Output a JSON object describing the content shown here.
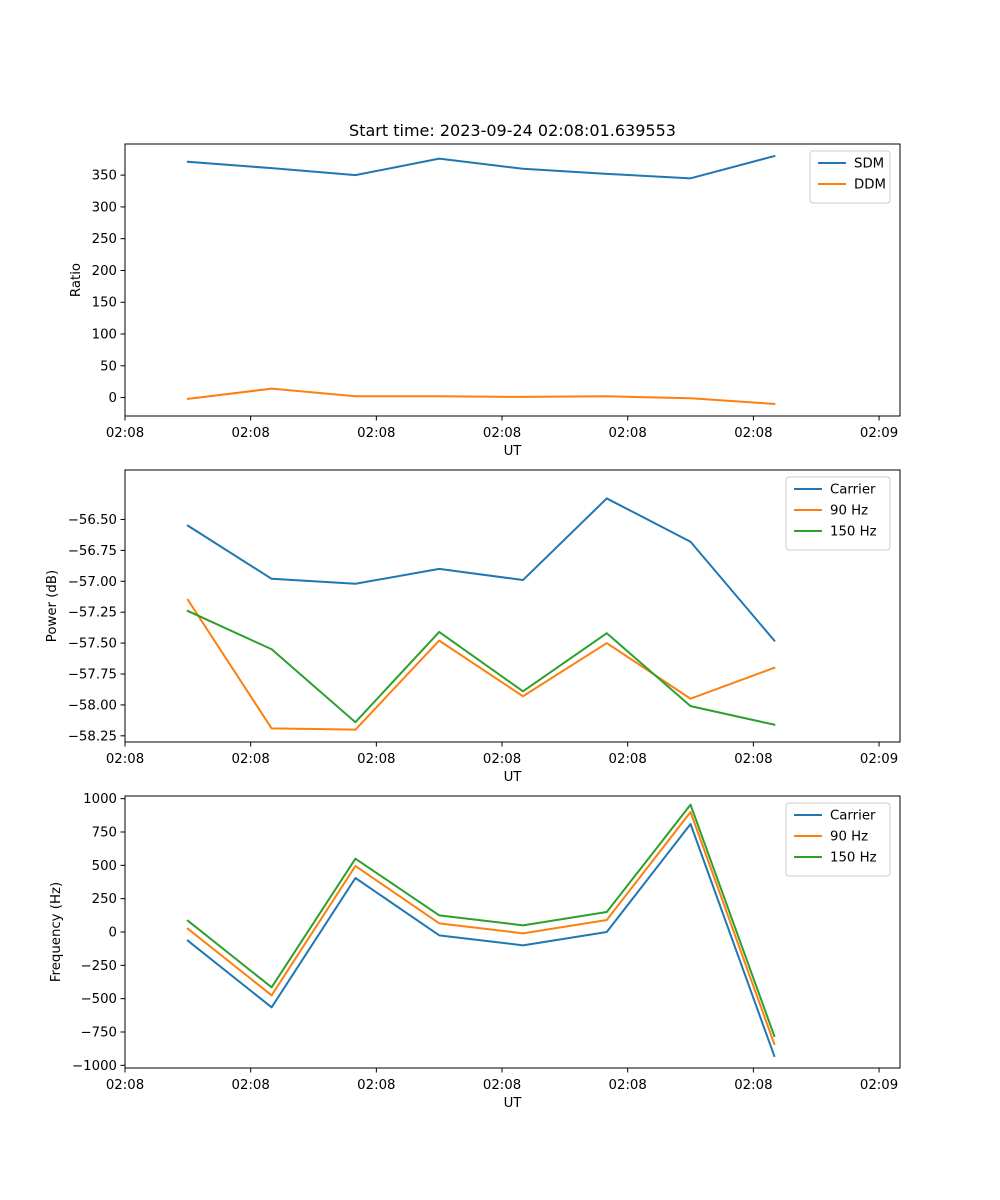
{
  "figure_title": "Start time: 2023-09-24 02:08:01.639553",
  "colors": {
    "blue": "#1f77b4",
    "orange": "#ff7f0e",
    "green": "#2ca02c"
  },
  "chart_data": [
    {
      "type": "line",
      "title": "Start time: 2023-09-24 02:08:01.639553",
      "xlabel": "UT",
      "ylabel": "Ratio",
      "xlim": [
        0,
        9.25
      ],
      "ylim": [
        -29,
        399
      ],
      "x": [
        0.75,
        1.75,
        2.75,
        3.75,
        4.75,
        5.75,
        6.75,
        7.75
      ],
      "xticks": [
        0,
        1.5,
        3,
        4.5,
        6,
        7.5,
        9
      ],
      "xticklabels": [
        "02:08",
        "02:08",
        "02:08",
        "02:08",
        "02:08",
        "02:08",
        "02:09"
      ],
      "yticks": [
        0,
        50,
        100,
        150,
        200,
        250,
        300,
        350
      ],
      "yticklabels": [
        "0",
        "50",
        "100",
        "150",
        "200",
        "250",
        "300",
        "350"
      ],
      "legend": "top-right",
      "series": [
        {
          "name": "SDM",
          "color": "#1f77b4",
          "values": [
            371,
            361,
            350,
            376,
            360,
            352,
            345,
            380
          ]
        },
        {
          "name": "DDM",
          "color": "#ff7f0e",
          "values": [
            -2,
            14,
            2,
            2,
            1,
            2,
            -1,
            -10
          ]
        }
      ]
    },
    {
      "type": "line",
      "title": "",
      "xlabel": "UT",
      "ylabel": "Power (dB)",
      "xlim": [
        0,
        9.25
      ],
      "ylim": [
        -58.3,
        -56.1
      ],
      "x": [
        0.75,
        1.75,
        2.75,
        3.75,
        4.75,
        5.75,
        6.75,
        7.75
      ],
      "xticks": [
        0,
        1.5,
        3,
        4.5,
        6,
        7.5,
        9
      ],
      "xticklabels": [
        "02:08",
        "02:08",
        "02:08",
        "02:08",
        "02:08",
        "02:08",
        "02:09"
      ],
      "yticks": [
        -58.25,
        -58.0,
        -57.75,
        -57.5,
        -57.25,
        -57.0,
        -56.75,
        -56.5
      ],
      "yticklabels": [
        "−58.25",
        "−58.00",
        "−57.75",
        "−57.50",
        "−57.25",
        "−57.00",
        "−56.75",
        "−56.50"
      ],
      "legend": "top-right",
      "series": [
        {
          "name": "Carrier",
          "color": "#1f77b4",
          "values": [
            -56.55,
            -56.98,
            -57.02,
            -56.9,
            -56.99,
            -56.33,
            -56.68,
            -57.48
          ]
        },
        {
          "name": "90 Hz",
          "color": "#ff7f0e",
          "values": [
            -57.15,
            -58.19,
            -58.2,
            -57.48,
            -57.93,
            -57.5,
            -57.95,
            -57.7
          ]
        },
        {
          "name": "150 Hz",
          "color": "#2ca02c",
          "values": [
            -57.24,
            -57.55,
            -58.14,
            -57.41,
            -57.89,
            -57.42,
            -58.01,
            -58.16
          ]
        }
      ]
    },
    {
      "type": "line",
      "title": "",
      "xlabel": "UT",
      "ylabel": "Frequency (Hz)",
      "xlim": [
        0,
        9.25
      ],
      "ylim": [
        -1020,
        1020
      ],
      "x": [
        0.75,
        1.75,
        2.75,
        3.75,
        4.75,
        5.75,
        6.75,
        7.75
      ],
      "xticks": [
        0,
        1.5,
        3,
        4.5,
        6,
        7.5,
        9
      ],
      "xticklabels": [
        "02:08",
        "02:08",
        "02:08",
        "02:08",
        "02:08",
        "02:08",
        "02:09"
      ],
      "yticks": [
        -1000,
        -750,
        -500,
        -250,
        0,
        250,
        500,
        750,
        1000
      ],
      "yticklabels": [
        "−1000",
        "−750",
        "−500",
        "−250",
        "0",
        "250",
        "500",
        "750",
        "1000"
      ],
      "legend": "top-right",
      "series": [
        {
          "name": "Carrier",
          "color": "#1f77b4",
          "values": [
            -65,
            -565,
            405,
            -25,
            -100,
            0,
            810,
            -930
          ]
        },
        {
          "name": "90 Hz",
          "color": "#ff7f0e",
          "values": [
            25,
            -475,
            495,
            65,
            -10,
            90,
            900,
            -840
          ]
        },
        {
          "name": "150 Hz",
          "color": "#2ca02c",
          "values": [
            85,
            -415,
            550,
            125,
            50,
            150,
            955,
            -780
          ]
        }
      ]
    }
  ]
}
